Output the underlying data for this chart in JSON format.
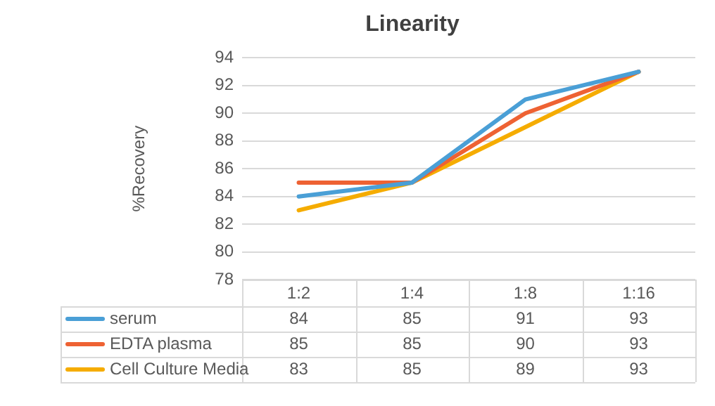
{
  "chart_data": {
    "type": "line",
    "title": "Linearity",
    "ylabel": "%Recovery",
    "categories": [
      "1:2",
      "1:4",
      "1:8",
      "1:16"
    ],
    "series": [
      {
        "name": "serum",
        "color": "#4a9fd6",
        "values": [
          84,
          85,
          91,
          93
        ]
      },
      {
        "name": "EDTA plasma",
        "color": "#ee6233",
        "values": [
          85,
          85,
          90,
          93
        ]
      },
      {
        "name": "Cell Culture Media",
        "color": "#f5ac00",
        "values": [
          83,
          85,
          89,
          93
        ]
      }
    ],
    "ylim": [
      78,
      94
    ],
    "yticks": [
      78,
      80,
      82,
      84,
      86,
      88,
      90,
      92,
      94
    ],
    "grid": "y",
    "legend": "bottom",
    "data_labels": true,
    "marker": "none",
    "line_style": "solid"
  }
}
